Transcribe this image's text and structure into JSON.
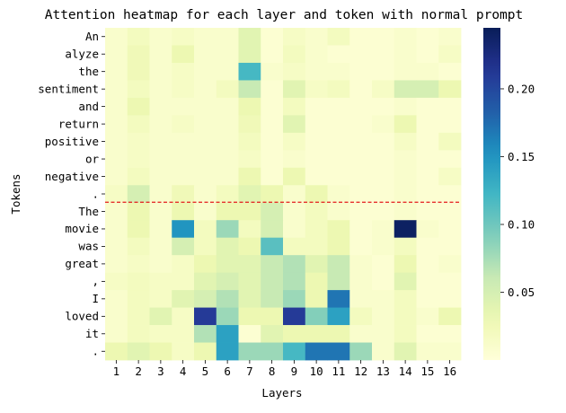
{
  "chart_data": {
    "type": "heatmap",
    "title": "Attention heatmap for each layer and token with normal prompt",
    "xlabel": "Layers",
    "ylabel": "Tokens",
    "x": [
      "1",
      "2",
      "3",
      "4",
      "5",
      "6",
      "7",
      "8",
      "9",
      "10",
      "11",
      "12",
      "13",
      "14",
      "15",
      "16"
    ],
    "y": [
      "An",
      "alyze",
      "the",
      "sentiment",
      "and",
      "return",
      "positive",
      "or",
      "negative",
      ".",
      "The",
      "movie",
      "was",
      "great",
      ",",
      "I",
      "loved",
      "it",
      "."
    ],
    "values": [
      [
        0.01,
        0.02,
        0.01,
        0.015,
        0.01,
        0.01,
        0.04,
        0.005,
        0.015,
        0.01,
        0.02,
        0.005,
        0.005,
        0.01,
        0.005,
        0.01
      ],
      [
        0.01,
        0.025,
        0.01,
        0.03,
        0.01,
        0.01,
        0.04,
        0.005,
        0.02,
        0.01,
        0.005,
        0.005,
        0.005,
        0.01,
        0.005,
        0.015
      ],
      [
        0.01,
        0.025,
        0.01,
        0.015,
        0.01,
        0.01,
        0.12,
        0.01,
        0.015,
        0.01,
        0.01,
        0.005,
        0.005,
        0.01,
        0.01,
        0.005
      ],
      [
        0.01,
        0.02,
        0.01,
        0.015,
        0.01,
        0.02,
        0.06,
        0.005,
        0.04,
        0.015,
        0.02,
        0.005,
        0.015,
        0.05,
        0.05,
        0.03
      ],
      [
        0.01,
        0.03,
        0.01,
        0.01,
        0.01,
        0.01,
        0.03,
        0.005,
        0.02,
        0.005,
        0.005,
        0.005,
        0.005,
        0.01,
        0.005,
        0.005
      ],
      [
        0.01,
        0.02,
        0.01,
        0.015,
        0.01,
        0.01,
        0.025,
        0.005,
        0.04,
        0.005,
        0.005,
        0.005,
        0.01,
        0.03,
        0.005,
        0.005
      ],
      [
        0.01,
        0.015,
        0.01,
        0.01,
        0.01,
        0.01,
        0.02,
        0.005,
        0.015,
        0.005,
        0.005,
        0.005,
        0.005,
        0.015,
        0.005,
        0.02
      ],
      [
        0.01,
        0.015,
        0.01,
        0.01,
        0.01,
        0.01,
        0.015,
        0.005,
        0.01,
        0.005,
        0.005,
        0.005,
        0.005,
        0.01,
        0.005,
        0.005
      ],
      [
        0.01,
        0.02,
        0.01,
        0.01,
        0.01,
        0.01,
        0.03,
        0.005,
        0.03,
        0.005,
        0.005,
        0.005,
        0.005,
        0.01,
        0.005,
        0.015
      ],
      [
        0.015,
        0.05,
        0.01,
        0.025,
        0.01,
        0.02,
        0.04,
        0.03,
        0.01,
        0.03,
        0.01,
        0.005,
        0.005,
        0.01,
        0.005,
        0.005
      ],
      [
        0.01,
        0.03,
        0.01,
        0.03,
        0.01,
        0.03,
        0.03,
        0.05,
        0.01,
        0.02,
        0.01,
        0.005,
        0.005,
        0.01,
        0.005,
        0.005
      ],
      [
        0.01,
        0.03,
        0.01,
        0.15,
        0.02,
        0.08,
        0.02,
        0.05,
        0.01,
        0.02,
        0.03,
        0.005,
        0.01,
        0.24,
        0.01,
        0.005
      ],
      [
        0.01,
        0.02,
        0.01,
        0.05,
        0.02,
        0.04,
        0.03,
        0.11,
        0.02,
        0.02,
        0.03,
        0.005,
        0.01,
        0.02,
        0.005,
        0.005
      ],
      [
        0.01,
        0.015,
        0.01,
        0.015,
        0.03,
        0.04,
        0.04,
        0.06,
        0.07,
        0.04,
        0.06,
        0.01,
        0.005,
        0.03,
        0.005,
        0.01
      ],
      [
        0.015,
        0.02,
        0.015,
        0.015,
        0.04,
        0.05,
        0.04,
        0.06,
        0.07,
        0.03,
        0.06,
        0.01,
        0.005,
        0.04,
        0.005,
        0.005
      ],
      [
        0.01,
        0.02,
        0.015,
        0.04,
        0.05,
        0.07,
        0.04,
        0.06,
        0.08,
        0.03,
        0.17,
        0.01,
        0.01,
        0.02,
        0.005,
        0.005
      ],
      [
        0.01,
        0.02,
        0.04,
        0.015,
        0.21,
        0.08,
        0.03,
        0.03,
        0.21,
        0.09,
        0.14,
        0.02,
        0.01,
        0.02,
        0.01,
        0.03
      ],
      [
        0.01,
        0.02,
        0.015,
        0.015,
        0.07,
        0.14,
        0.005,
        0.04,
        0.03,
        0.03,
        0.03,
        0.01,
        0.01,
        0.02,
        0.005,
        0.005
      ],
      [
        0.03,
        0.04,
        0.03,
        0.015,
        0.03,
        0.14,
        0.08,
        0.08,
        0.12,
        0.17,
        0.17,
        0.08,
        0.01,
        0.04,
        0.01,
        0.01
      ]
    ],
    "colormap": "YlGnBu",
    "color_range": [
      0.0,
      0.245
    ],
    "colorbar_ticks": [
      "0.05",
      "0.10",
      "0.15",
      "0.20"
    ],
    "colorbar_tick_values": [
      0.05,
      0.1,
      0.15,
      0.2
    ],
    "separator_line": {
      "between_rows": [
        9,
        10
      ],
      "color": "#e41a1c",
      "style": "dashed"
    }
  }
}
